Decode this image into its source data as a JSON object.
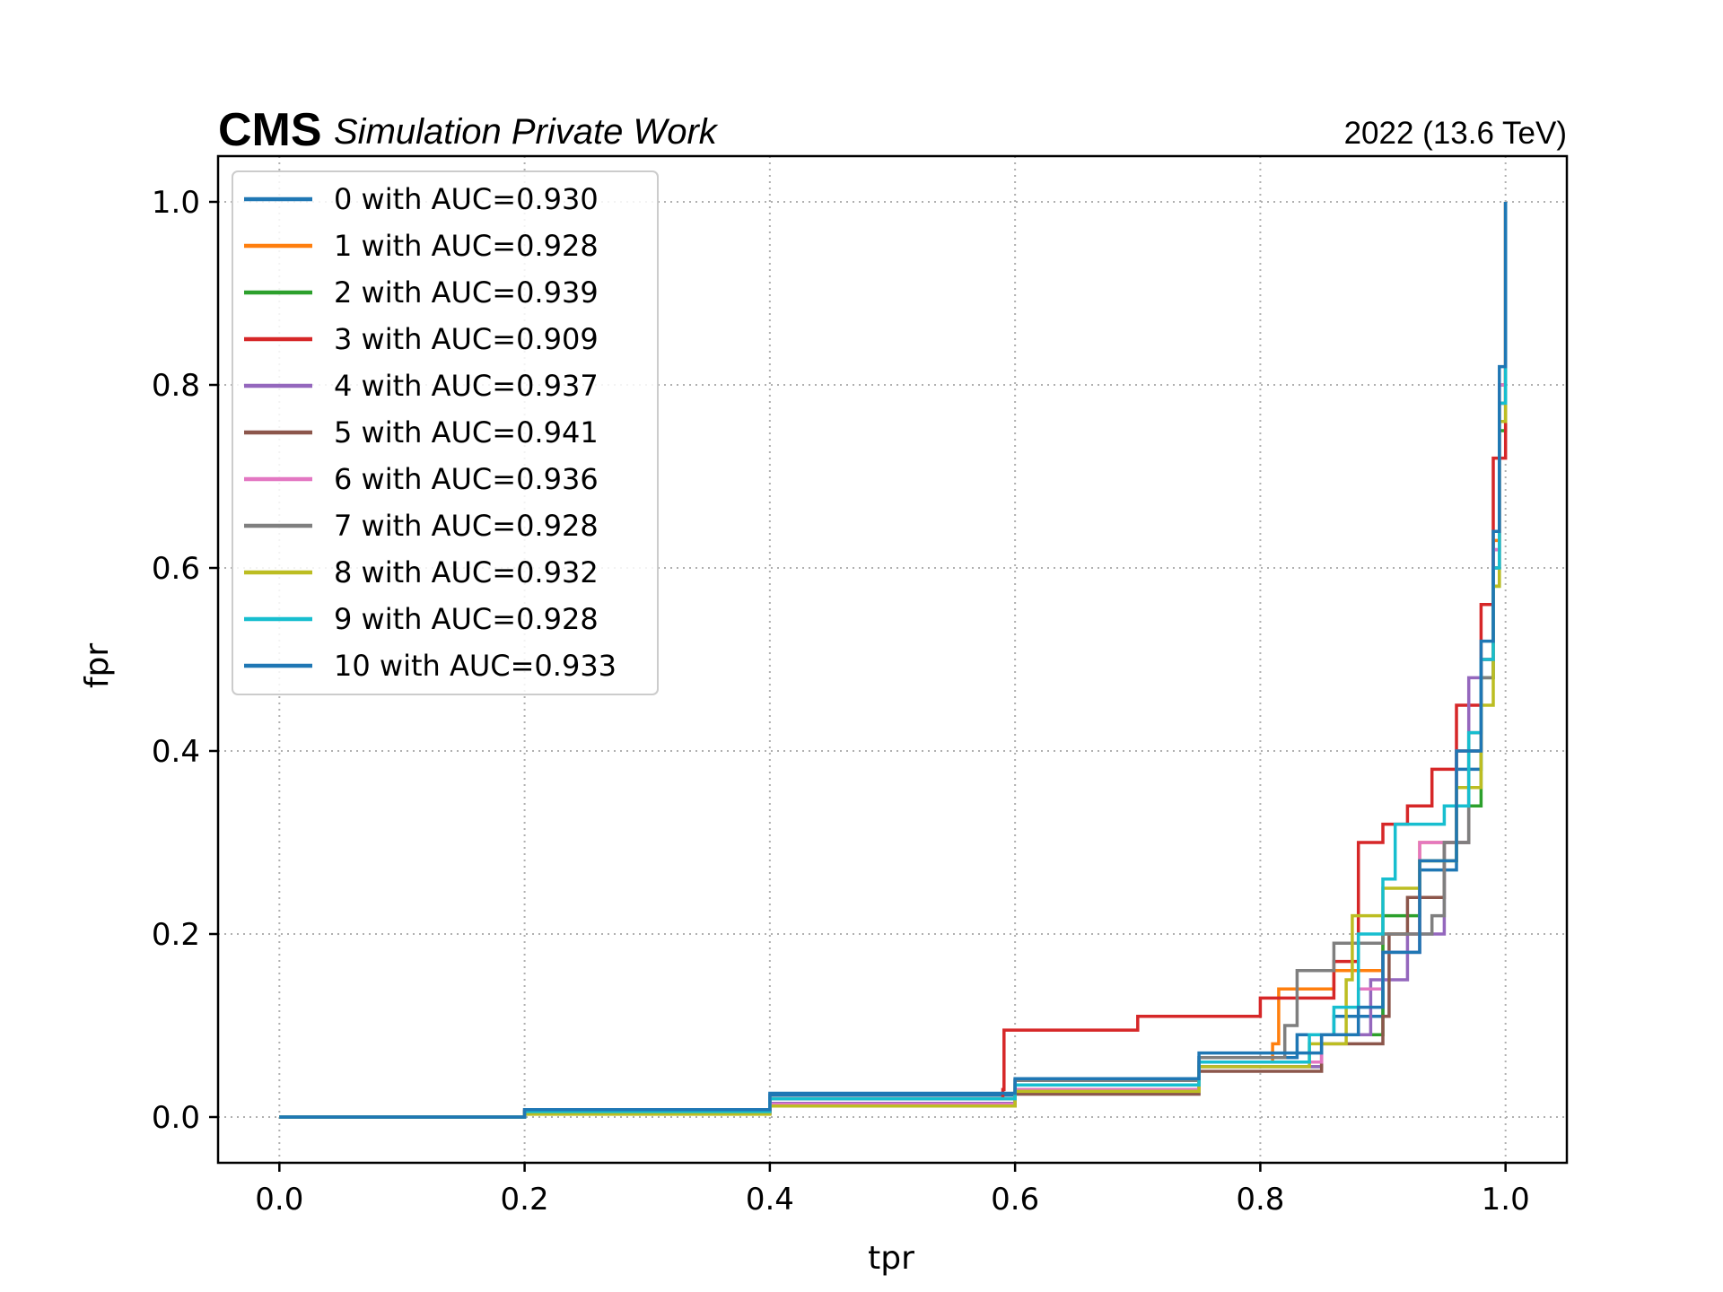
{
  "header": {
    "experiment": "CMS",
    "status": "Simulation Private Work",
    "energy": "2022 (13.6 TeV)"
  },
  "chart_data": {
    "type": "line",
    "xlabel": "tpr",
    "ylabel": "fpr",
    "xlim": [
      -0.05,
      1.05
    ],
    "ylim": [
      -0.05,
      1.05
    ],
    "xticks": [
      "0.0",
      "0.2",
      "0.4",
      "0.6",
      "0.8",
      "1.0"
    ],
    "yticks": [
      "0.0",
      "0.2",
      "0.4",
      "0.6",
      "0.8",
      "1.0"
    ],
    "grid": true,
    "legend_position": "upper-left",
    "series": [
      {
        "name": "0 with AUC=0.930",
        "color": "#1f77b4",
        "x": [
          0.0,
          0.2,
          0.4,
          0.6,
          0.75,
          0.83,
          0.86,
          0.9,
          0.93,
          0.96,
          0.98,
          0.99,
          0.995,
          1.0
        ],
        "y": [
          0.0,
          0.008,
          0.024,
          0.04,
          0.065,
          0.09,
          0.11,
          0.18,
          0.27,
          0.38,
          0.5,
          0.62,
          0.8,
          1.0
        ]
      },
      {
        "name": "1 with AUC=0.928",
        "color": "#ff7f0e",
        "x": [
          0.0,
          0.2,
          0.4,
          0.6,
          0.75,
          0.81,
          0.815,
          0.86,
          0.9,
          0.93,
          0.96,
          0.98,
          0.99,
          0.995,
          1.0
        ],
        "y": [
          0.0,
          0.007,
          0.02,
          0.035,
          0.06,
          0.08,
          0.14,
          0.16,
          0.2,
          0.3,
          0.4,
          0.5,
          0.63,
          0.8,
          1.0
        ]
      },
      {
        "name": "2 with AUC=0.939",
        "color": "#2ca02c",
        "x": [
          0.0,
          0.2,
          0.4,
          0.6,
          0.75,
          0.85,
          0.9,
          0.93,
          0.96,
          0.98,
          0.99,
          0.995,
          1.0
        ],
        "y": [
          0.0,
          0.004,
          0.014,
          0.03,
          0.055,
          0.09,
          0.22,
          0.28,
          0.34,
          0.48,
          0.58,
          0.75,
          1.0
        ]
      },
      {
        "name": "3 with AUC=0.909",
        "color": "#d62728",
        "x": [
          0.0,
          0.2,
          0.4,
          0.59,
          0.591,
          0.7,
          0.8,
          0.86,
          0.88,
          0.9,
          0.92,
          0.94,
          0.96,
          0.98,
          0.99,
          1.0
        ],
        "y": [
          0.0,
          0.006,
          0.02,
          0.03,
          0.095,
          0.11,
          0.13,
          0.17,
          0.3,
          0.32,
          0.34,
          0.38,
          0.45,
          0.56,
          0.72,
          1.0
        ]
      },
      {
        "name": "4 with AUC=0.937",
        "color": "#9467bd",
        "x": [
          0.0,
          0.2,
          0.4,
          0.6,
          0.75,
          0.85,
          0.89,
          0.92,
          0.95,
          0.97,
          0.98,
          0.99,
          0.995,
          1.0
        ],
        "y": [
          0.0,
          0.005,
          0.015,
          0.03,
          0.055,
          0.09,
          0.15,
          0.2,
          0.3,
          0.48,
          0.5,
          0.6,
          0.78,
          1.0
        ]
      },
      {
        "name": "5 with AUC=0.941",
        "color": "#8c564b",
        "x": [
          0.0,
          0.2,
          0.4,
          0.6,
          0.75,
          0.85,
          0.9,
          0.905,
          0.92,
          0.95,
          0.97,
          0.98,
          0.99,
          0.995,
          1.0
        ],
        "y": [
          0.0,
          0.004,
          0.012,
          0.025,
          0.05,
          0.08,
          0.11,
          0.2,
          0.24,
          0.3,
          0.42,
          0.5,
          0.6,
          0.78,
          1.0
        ]
      },
      {
        "name": "6 with AUC=0.936",
        "color": "#e377c2",
        "x": [
          0.0,
          0.2,
          0.4,
          0.6,
          0.75,
          0.85,
          0.88,
          0.9,
          0.93,
          0.96,
          0.98,
          0.99,
          0.995,
          1.0
        ],
        "y": [
          0.0,
          0.004,
          0.014,
          0.03,
          0.06,
          0.09,
          0.14,
          0.18,
          0.3,
          0.4,
          0.5,
          0.62,
          0.8,
          1.0
        ]
      },
      {
        "name": "7 with AUC=0.928",
        "color": "#7f7f7f",
        "x": [
          0.0,
          0.2,
          0.4,
          0.6,
          0.75,
          0.82,
          0.83,
          0.86,
          0.9,
          0.94,
          0.95,
          0.97,
          0.98,
          0.99,
          0.995,
          1.0
        ],
        "y": [
          0.0,
          0.006,
          0.02,
          0.04,
          0.065,
          0.1,
          0.16,
          0.19,
          0.2,
          0.22,
          0.3,
          0.4,
          0.48,
          0.6,
          0.78,
          1.0
        ]
      },
      {
        "name": "8 with AUC=0.932",
        "color": "#bcbd22",
        "x": [
          0.0,
          0.2,
          0.4,
          0.6,
          0.75,
          0.84,
          0.87,
          0.875,
          0.9,
          0.93,
          0.96,
          0.98,
          0.99,
          0.995,
          1.0
        ],
        "y": [
          0.0,
          0.003,
          0.012,
          0.028,
          0.055,
          0.08,
          0.15,
          0.22,
          0.25,
          0.28,
          0.36,
          0.45,
          0.58,
          0.76,
          1.0
        ]
      },
      {
        "name": "9 with AUC=0.928",
        "color": "#17becf",
        "x": [
          0.0,
          0.2,
          0.4,
          0.6,
          0.75,
          0.84,
          0.86,
          0.88,
          0.9,
          0.91,
          0.95,
          0.97,
          0.98,
          0.99,
          0.995,
          1.0
        ],
        "y": [
          0.0,
          0.006,
          0.02,
          0.035,
          0.06,
          0.09,
          0.12,
          0.2,
          0.26,
          0.32,
          0.34,
          0.42,
          0.5,
          0.6,
          0.78,
          1.0
        ]
      },
      {
        "name": "10 with AUC=0.933",
        "color": "#1f77b4",
        "x": [
          0.0,
          0.2,
          0.4,
          0.6,
          0.75,
          0.85,
          0.88,
          0.9,
          0.93,
          0.96,
          0.98,
          0.99,
          0.995,
          1.0
        ],
        "y": [
          0.0,
          0.008,
          0.026,
          0.042,
          0.07,
          0.09,
          0.12,
          0.18,
          0.28,
          0.4,
          0.52,
          0.64,
          0.82,
          1.0
        ]
      }
    ]
  }
}
